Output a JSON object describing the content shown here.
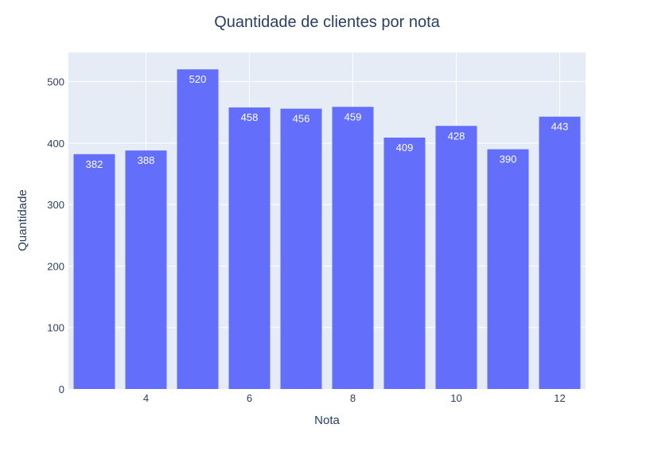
{
  "chart_data": {
    "type": "bar",
    "title": "Quantidade de clientes por nota",
    "xlabel": "Nota",
    "ylabel": "Quantidade",
    "x": [
      3,
      4,
      5,
      6,
      7,
      8,
      9,
      10,
      11,
      12
    ],
    "values": [
      382,
      388,
      520,
      458,
      456,
      459,
      409,
      428,
      390,
      443
    ],
    "x_tick_values": [
      4,
      6,
      8,
      10,
      12
    ],
    "x_tick_labels": [
      "4",
      "6",
      "8",
      "10",
      "12"
    ],
    "y_tick_values": [
      0,
      100,
      200,
      300,
      400,
      500
    ],
    "y_tick_labels": [
      "0",
      "100",
      "200",
      "300",
      "400",
      "500"
    ],
    "xlim": [
      2.5,
      12.5
    ],
    "ylim": [
      0,
      547.4
    ],
    "grid": true,
    "colors": {
      "bar": "#636efa",
      "plot_background": "#e5ecf6",
      "grid": "#ffffff",
      "text": "#2a3f5f"
    }
  }
}
